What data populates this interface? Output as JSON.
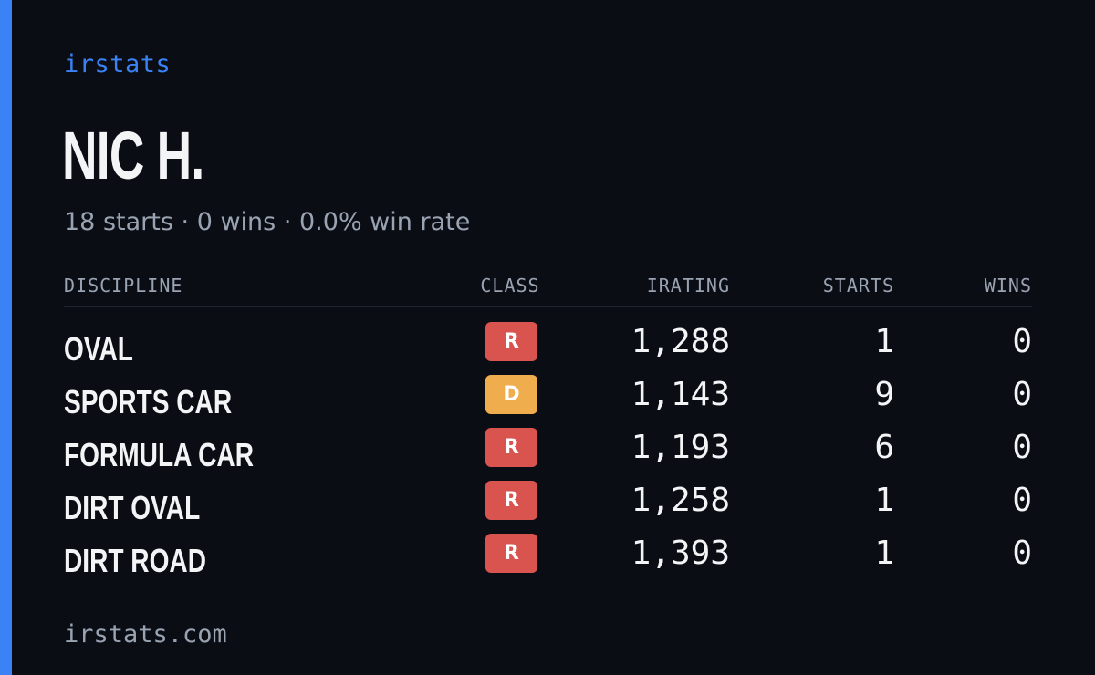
{
  "brand": "irstats",
  "player": {
    "name": "NIC H."
  },
  "summary": {
    "starts": "18 starts",
    "wins": "0 wins",
    "win_rate": "0.0% win rate",
    "separator": "·"
  },
  "table": {
    "headers": {
      "discipline": "DISCIPLINE",
      "class": "CLASS",
      "irating": "IRATING",
      "starts": "STARTS",
      "wins": "WINS"
    },
    "rows": [
      {
        "discipline": "OVAL",
        "class": "R",
        "class_color": "#d9534f",
        "irating": "1,288",
        "starts": "1",
        "wins": "0"
      },
      {
        "discipline": "SPORTS CAR",
        "class": "D",
        "class_color": "#f0ad4e",
        "irating": "1,143",
        "starts": "9",
        "wins": "0"
      },
      {
        "discipline": "FORMULA CAR",
        "class": "R",
        "class_color": "#d9534f",
        "irating": "1,193",
        "starts": "6",
        "wins": "0"
      },
      {
        "discipline": "DIRT OVAL",
        "class": "R",
        "class_color": "#d9534f",
        "irating": "1,258",
        "starts": "1",
        "wins": "0"
      },
      {
        "discipline": "DIRT ROAD",
        "class": "R",
        "class_color": "#d9534f",
        "irating": "1,393",
        "starts": "1",
        "wins": "0"
      }
    ]
  },
  "footer": {
    "url": "irstats.com"
  },
  "colors": {
    "background": "#0a0d14",
    "accent": "#3b82f6",
    "class_r": "#d9534f",
    "class_d": "#f0ad4e"
  }
}
